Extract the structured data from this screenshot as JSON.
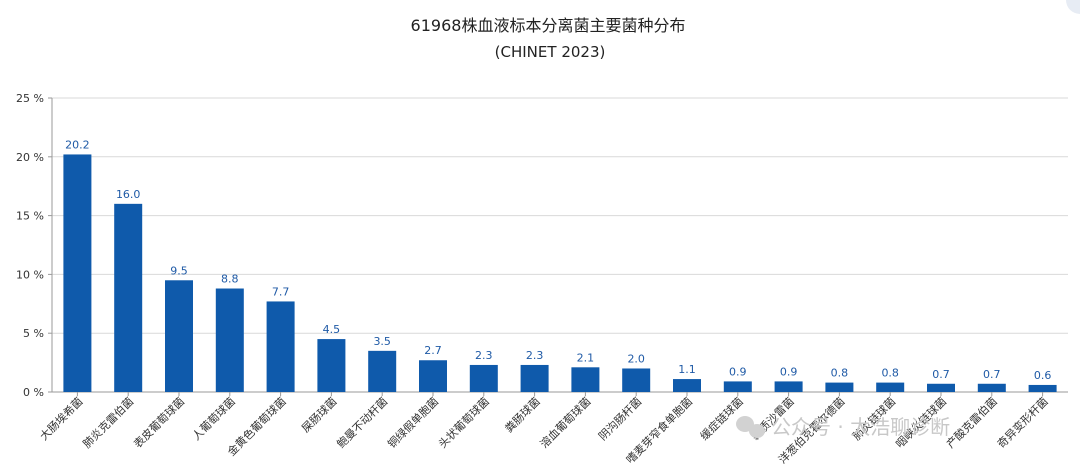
{
  "chart_data": {
    "type": "bar",
    "title": "61968株血液标本分离菌主要菌种分布",
    "subtitle": "(CHINET 2023)",
    "xlabel": "",
    "ylabel": "",
    "ylim": [
      0,
      25
    ],
    "yticks": [
      0,
      5,
      10,
      15,
      20,
      25
    ],
    "ytick_labels": [
      "0 %",
      "5 %",
      "10 %",
      "15 %",
      "20 %",
      "25 %"
    ],
    "grid": true,
    "bar_color": "#0f5aab",
    "label_color": "#1f5aa6",
    "categories": [
      "大肠埃希菌",
      "肺炎克雷伯菌",
      "表皮葡萄球菌",
      "人葡萄球菌",
      "金黄色葡萄球菌",
      "屎肠球菌",
      "鲍曼不动杆菌",
      "铜绿假单胞菌",
      "头状葡萄球菌",
      "粪肠球菌",
      "溶血葡萄球菌",
      "阴沟肠杆菌",
      "嗜麦芽窄食单胞菌",
      "缓症链球菌",
      "黏质沙雷菌",
      "洋葱伯克霍尔德菌",
      "肺炎链球菌",
      "咽峡炎链球菌",
      "产酸克雷伯菌",
      "奇异变形杆菌"
    ],
    "values": [
      20.2,
      16.0,
      9.5,
      8.8,
      7.7,
      4.5,
      3.5,
      2.7,
      2.3,
      2.3,
      2.1,
      2.0,
      1.1,
      0.9,
      0.9,
      0.8,
      0.8,
      0.7,
      0.7,
      0.6
    ],
    "value_labels": [
      "20.2",
      "16.0",
      "9.5",
      "8.8",
      "7.7",
      "4.5",
      "3.5",
      "2.7",
      "2.3",
      "2.3",
      "2.1",
      "2.0",
      "1.1",
      "0.9",
      "0.9",
      "0.8",
      "0.8",
      "0.7",
      "0.7",
      "0.6"
    ]
  },
  "watermark": {
    "text": "公众号 · 太浩聊诊断",
    "icon": "wechat-icon"
  }
}
